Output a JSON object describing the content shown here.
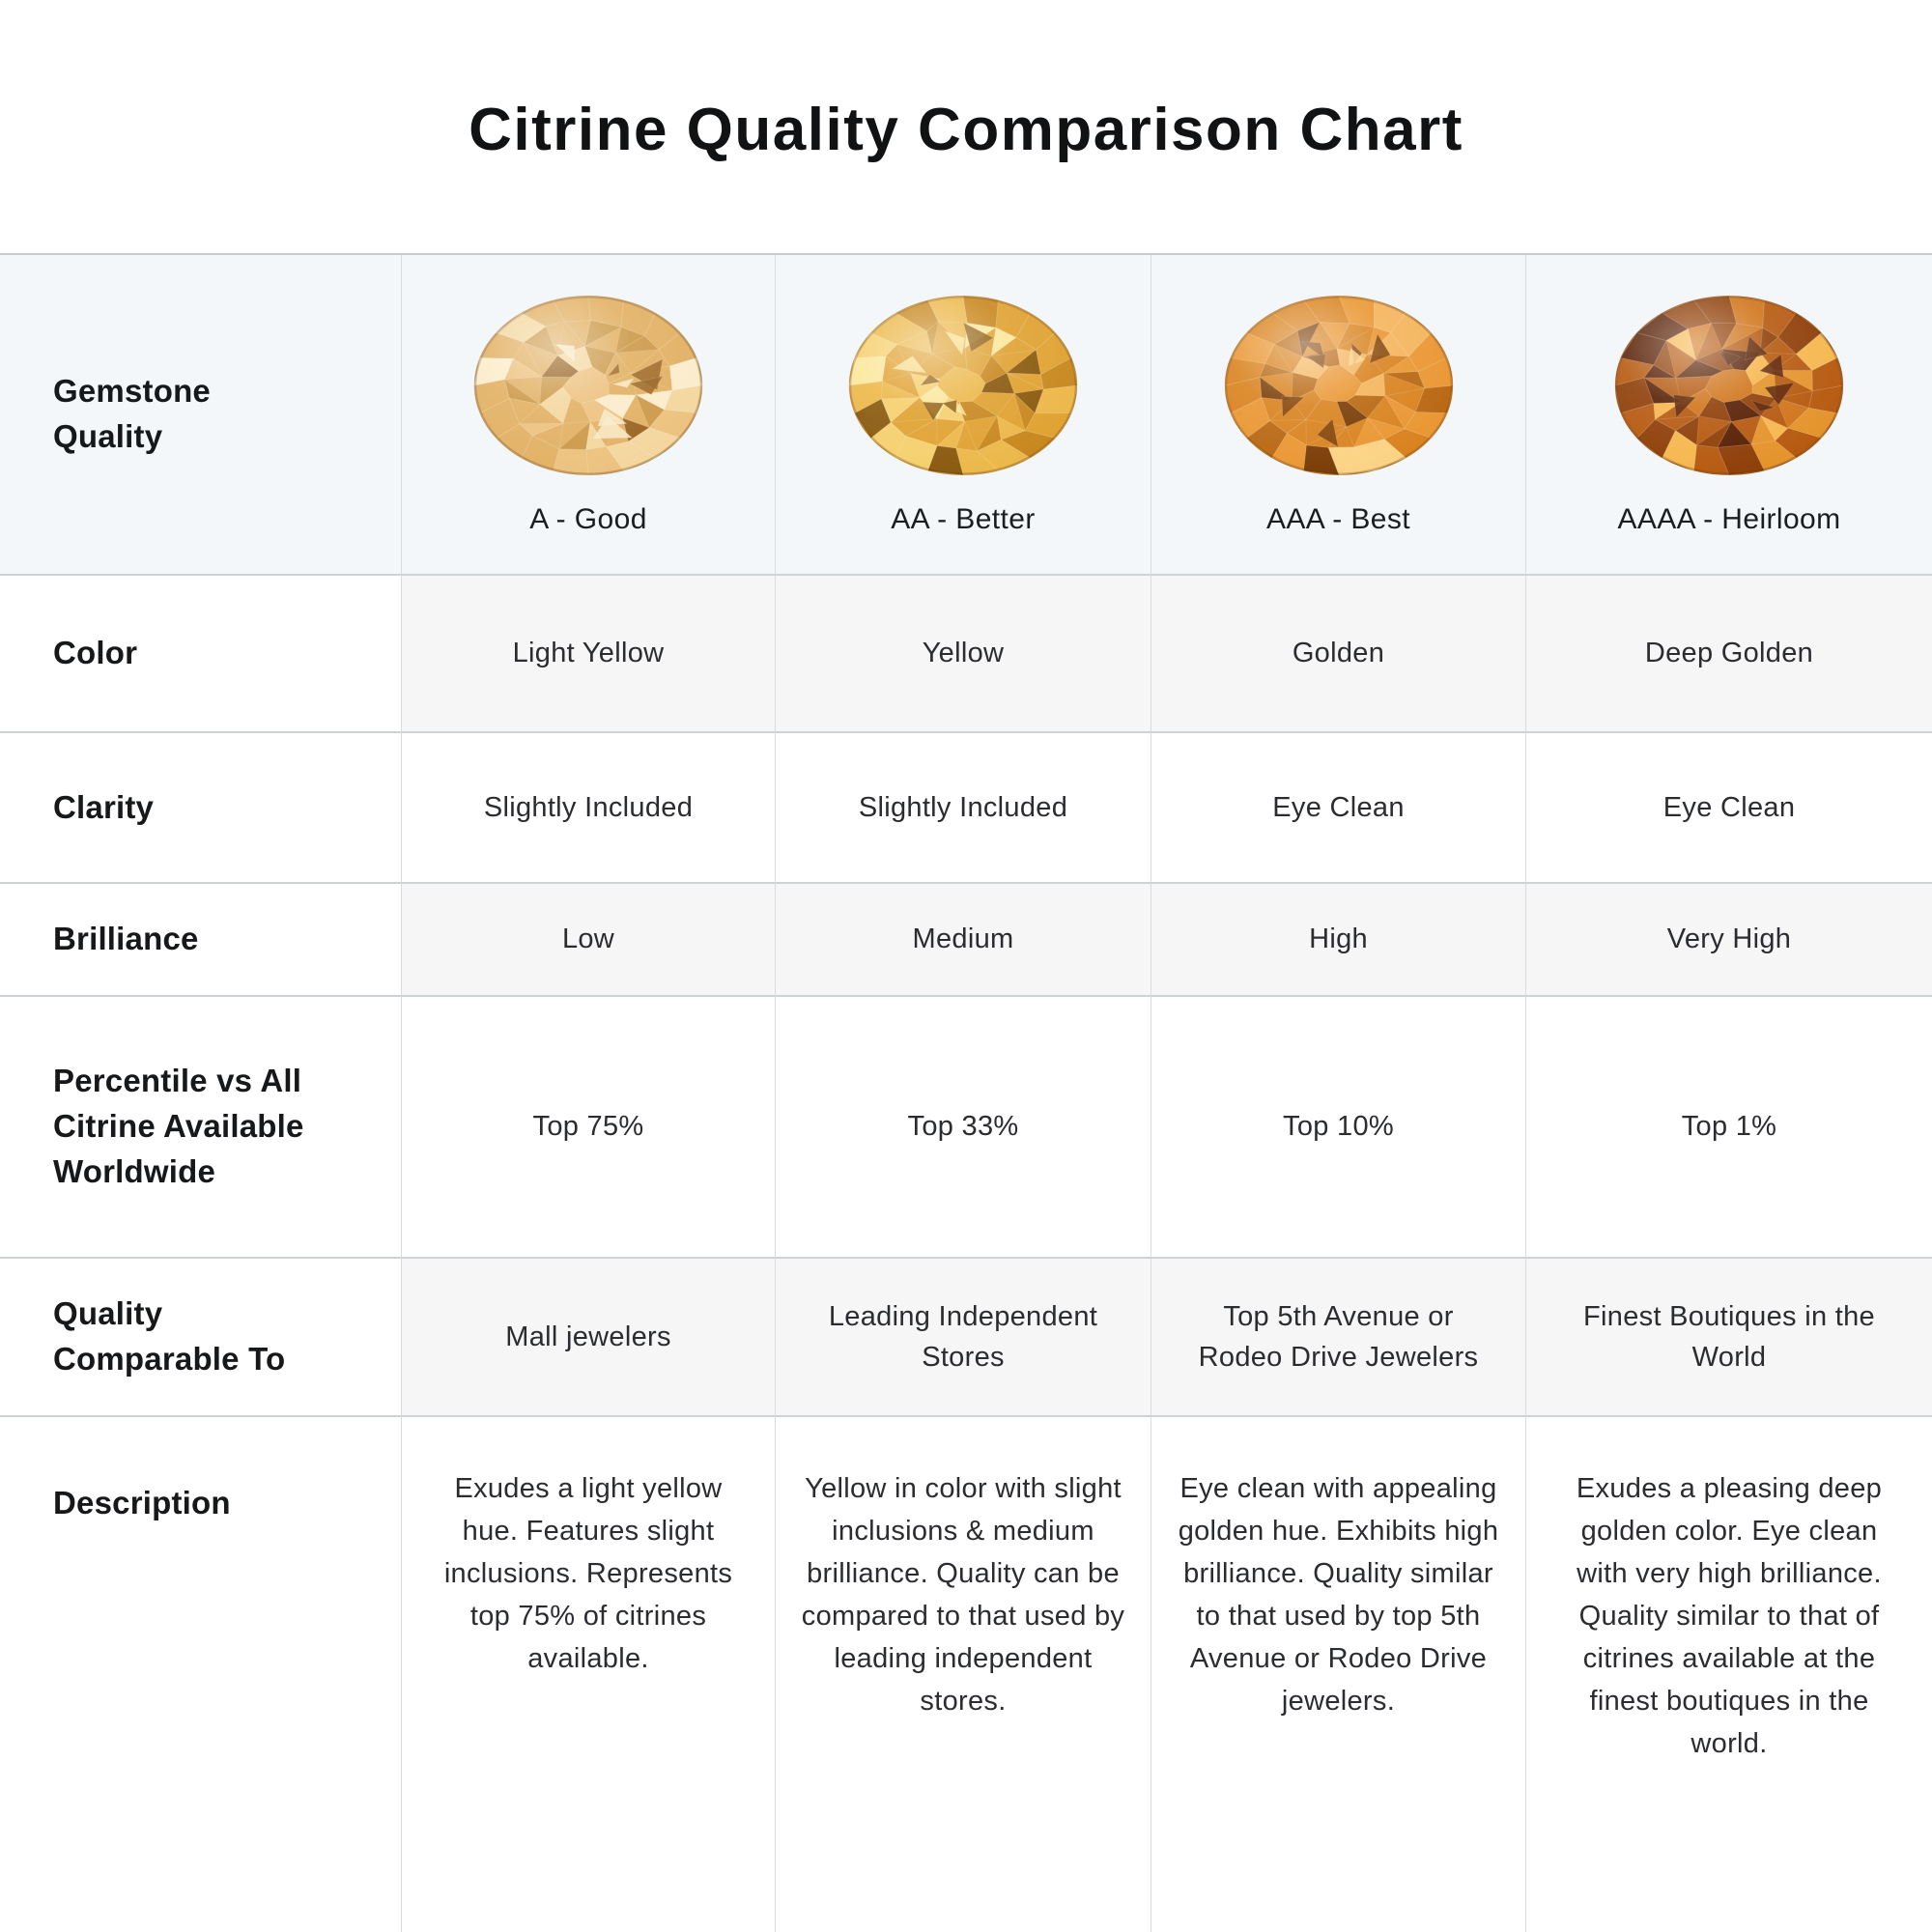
{
  "title": "Citrine Quality Comparison Chart",
  "row_labels": {
    "gemstone_quality": "Gemstone\nQuality",
    "color": "Color",
    "clarity": "Clarity",
    "brilliance": "Brilliance",
    "percentile": "Percentile vs All\nCitrine Available\nWorldwide",
    "comparable": "Quality\nComparable To",
    "description": "Description"
  },
  "grades": [
    {
      "id": "A",
      "grade_label": "A - Good",
      "gem_color_name": "light yellow citrine",
      "gem_palette": [
        "#9a6524",
        "#cc9a4a",
        "#e2b164",
        "#edc27f",
        "#f4d79f",
        "#fbeccb"
      ],
      "color": "Light Yellow",
      "clarity": "Slightly Included",
      "brilliance": "Low",
      "percentile": "Top 75%",
      "comparable": "Mall jewelers",
      "description": "Exudes a light yellow hue. Features slight inclusions. Represents top 75% of citrines available."
    },
    {
      "id": "AA",
      "grade_label": "AA - Better",
      "gem_color_name": "yellow citrine",
      "gem_palette": [
        "#8a5a0e",
        "#c8881f",
        "#e0a232",
        "#ecb84a",
        "#f6d06e",
        "#fce79c"
      ],
      "color": "Yellow",
      "clarity": "Slightly Included",
      "brilliance": "Medium",
      "percentile": "Top 33%",
      "comparable": "Leading Independent Stores",
      "description": "Yellow in color with slight inclusions & medium brilliance. Quality can be compared to that used by leading independent stores."
    },
    {
      "id": "AAA",
      "grade_label": "AAA - Best",
      "gem_color_name": "golden citrine",
      "gem_palette": [
        "#7a3d06",
        "#b96812",
        "#d9831f",
        "#ea9733",
        "#f4b55c",
        "#fbd385"
      ],
      "color": "Golden",
      "clarity": "Eye Clean",
      "brilliance": "High",
      "percentile": "Top 10%",
      "comparable": "Top 5th Avenue or Rodeo Drive Jewelers",
      "description": "Eye clean with appealing golden hue. Exhibits high brilliance. Quality similar to that used by top 5th Avenue or Rodeo Drive jewelers."
    },
    {
      "id": "AAAA",
      "grade_label": "AAAA - Heirloom",
      "gem_color_name": "deep golden citrine",
      "gem_palette": [
        "#571f03",
        "#8f3f08",
        "#b65a10",
        "#d0751a",
        "#e5942c",
        "#f6b74e"
      ],
      "color": "Deep Golden",
      "clarity": "Eye Clean",
      "brilliance": "Very High",
      "percentile": "Top 1%",
      "comparable": "Finest Boutiques in the World",
      "description": "Exudes a pleasing deep golden color. Eye clean with very high brilliance. Quality similar to that of citrines available at the finest boutiques in the world."
    }
  ],
  "colors": {
    "header_band_bg": "#f3f7fa",
    "stripe_row_bg": "#f6f6f7",
    "grid_line": "#cfd2d5",
    "title_text": "#111213"
  },
  "chart_data": {
    "type": "table",
    "title": "Citrine Quality Comparison Chart",
    "columns": [
      "Gemstone Quality",
      "A - Good",
      "AA - Better",
      "AAA - Best",
      "AAAA - Heirloom"
    ],
    "rows": [
      [
        "Color",
        "Light Yellow",
        "Yellow",
        "Golden",
        "Deep Golden"
      ],
      [
        "Clarity",
        "Slightly Included",
        "Slightly Included",
        "Eye Clean",
        "Eye Clean"
      ],
      [
        "Brilliance",
        "Low",
        "Medium",
        "High",
        "Very High"
      ],
      [
        "Percentile vs All Citrine Available Worldwide",
        "Top 75%",
        "Top 33%",
        "Top 10%",
        "Top 1%"
      ],
      [
        "Quality Comparable To",
        "Mall jewelers",
        "Leading Independent Stores",
        "Top 5th Avenue or Rodeo Drive Jewelers",
        "Finest Boutiques in the World"
      ],
      [
        "Description",
        "Exudes a light yellow hue. Features slight inclusions. Represents top 75% of citrines available.",
        "Yellow in color with slight inclusions & medium brilliance. Quality can be compared to that used by leading independent stores.",
        "Eye clean with appealing golden hue. Exhibits high brilliance. Quality similar to that used by top 5th Avenue or Rodeo Drive jewelers.",
        "Exudes a pleasing deep golden color. Eye clean with very high brilliance. Quality similar to that of citrines available at the finest boutiques in the world."
      ]
    ]
  }
}
